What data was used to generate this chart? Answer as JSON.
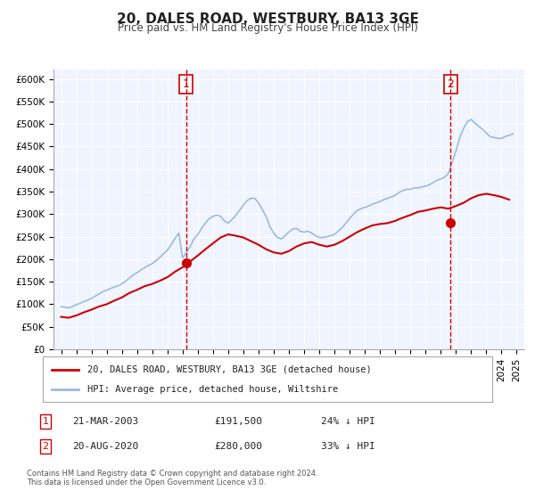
{
  "title": "20, DALES ROAD, WESTBURY, BA13 3GE",
  "subtitle": "Price paid vs. HM Land Registry's House Price Index (HPI)",
  "xlabel": "",
  "ylabel": "",
  "background_color": "#ffffff",
  "plot_bg_color": "#f0f4ff",
  "grid_color": "#ffffff",
  "ylim": [
    0,
    620000
  ],
  "xlim_start": 1995.0,
  "xlim_end": 2025.5,
  "yticks": [
    0,
    50000,
    100000,
    150000,
    200000,
    250000,
    300000,
    350000,
    400000,
    450000,
    500000,
    550000,
    600000
  ],
  "ytick_labels": [
    "£0",
    "£50K",
    "£100K",
    "£150K",
    "£200K",
    "£250K",
    "£300K",
    "£350K",
    "£400K",
    "£450K",
    "£500K",
    "£550K",
    "£600K"
  ],
  "xtick_years": [
    1995,
    1996,
    1997,
    1998,
    1999,
    2000,
    2001,
    2002,
    2003,
    2004,
    2005,
    2006,
    2007,
    2008,
    2009,
    2010,
    2011,
    2012,
    2013,
    2014,
    2015,
    2016,
    2017,
    2018,
    2019,
    2020,
    2021,
    2022,
    2023,
    2024,
    2025
  ],
  "red_line_label": "20, DALES ROAD, WESTBURY, BA13 3GE (detached house)",
  "blue_line_label": "HPI: Average price, detached house, Wiltshire",
  "sale1_date": "21-MAR-2003",
  "sale1_price": "£191,500",
  "sale1_hpi": "24% ↓ HPI",
  "sale1_x": 2003.22,
  "sale1_y": 191500,
  "sale2_date": "20-AUG-2020",
  "sale2_price": "£280,000",
  "sale2_hpi": "33% ↓ HPI",
  "sale2_x": 2020.64,
  "sale2_y": 280000,
  "footer": "Contains HM Land Registry data © Crown copyright and database right 2024.\nThis data is licensed under the Open Government Licence v3.0.",
  "red_color": "#cc0000",
  "blue_color": "#99bbdd",
  "dot_color": "#cc0000",
  "vline_color": "#cc0000",
  "marker_box_color": "#cc0000",
  "hpi_data_x": [
    1995.0,
    1995.25,
    1995.5,
    1995.75,
    1996.0,
    1996.25,
    1996.5,
    1996.75,
    1997.0,
    1997.25,
    1997.5,
    1997.75,
    1998.0,
    1998.25,
    1998.5,
    1998.75,
    1999.0,
    1999.25,
    1999.5,
    1999.75,
    2000.0,
    2000.25,
    2000.5,
    2000.75,
    2001.0,
    2001.25,
    2001.5,
    2001.75,
    2002.0,
    2002.25,
    2002.5,
    2002.75,
    2003.0,
    2003.25,
    2003.5,
    2003.75,
    2004.0,
    2004.25,
    2004.5,
    2004.75,
    2005.0,
    2005.25,
    2005.5,
    2005.75,
    2006.0,
    2006.25,
    2006.5,
    2006.75,
    2007.0,
    2007.25,
    2007.5,
    2007.75,
    2008.0,
    2008.25,
    2008.5,
    2008.75,
    2009.0,
    2009.25,
    2009.5,
    2009.75,
    2010.0,
    2010.25,
    2010.5,
    2010.75,
    2011.0,
    2011.25,
    2011.5,
    2011.75,
    2012.0,
    2012.25,
    2012.5,
    2012.75,
    2013.0,
    2013.25,
    2013.5,
    2013.75,
    2014.0,
    2014.25,
    2014.5,
    2014.75,
    2015.0,
    2015.25,
    2015.5,
    2015.75,
    2016.0,
    2016.25,
    2016.5,
    2016.75,
    2017.0,
    2017.25,
    2017.5,
    2017.75,
    2018.0,
    2018.25,
    2018.5,
    2018.75,
    2019.0,
    2019.25,
    2019.5,
    2019.75,
    2020.0,
    2020.25,
    2020.5,
    2020.75,
    2021.0,
    2021.25,
    2021.5,
    2021.75,
    2022.0,
    2022.25,
    2022.5,
    2022.75,
    2023.0,
    2023.25,
    2023.5,
    2023.75,
    2024.0,
    2024.25,
    2024.5,
    2024.75
  ],
  "hpi_data_y": [
    95000,
    93000,
    92000,
    95000,
    99000,
    102000,
    106000,
    109000,
    113000,
    118000,
    123000,
    128000,
    131000,
    135000,
    138000,
    141000,
    145000,
    151000,
    158000,
    165000,
    170000,
    176000,
    181000,
    186000,
    190000,
    197000,
    204000,
    212000,
    220000,
    232000,
    246000,
    258000,
    203000,
    215000,
    228000,
    245000,
    255000,
    268000,
    280000,
    290000,
    295000,
    298000,
    295000,
    285000,
    280000,
    288000,
    297000,
    308000,
    320000,
    330000,
    335000,
    335000,
    325000,
    310000,
    295000,
    272000,
    258000,
    248000,
    245000,
    252000,
    260000,
    267000,
    268000,
    262000,
    260000,
    262000,
    258000,
    252000,
    248000,
    248000,
    250000,
    252000,
    255000,
    262000,
    270000,
    280000,
    290000,
    300000,
    308000,
    312000,
    315000,
    318000,
    322000,
    325000,
    328000,
    332000,
    335000,
    338000,
    342000,
    348000,
    352000,
    355000,
    355000,
    358000,
    358000,
    360000,
    362000,
    365000,
    370000,
    375000,
    378000,
    382000,
    390000,
    415000,
    440000,
    470000,
    490000,
    505000,
    510000,
    502000,
    495000,
    488000,
    480000,
    472000,
    470000,
    468000,
    468000,
    472000,
    475000,
    478000
  ],
  "red_data_x": [
    1995.0,
    1995.5,
    1996.0,
    1996.5,
    1997.0,
    1997.5,
    1998.0,
    1998.5,
    1999.0,
    1999.5,
    2000.0,
    2000.5,
    2001.0,
    2001.5,
    2002.0,
    2002.5,
    2003.0,
    2003.5,
    2004.0,
    2004.5,
    2005.0,
    2005.5,
    2006.0,
    2006.5,
    2007.0,
    2007.5,
    2008.0,
    2008.5,
    2009.0,
    2009.5,
    2010.0,
    2010.5,
    2011.0,
    2011.5,
    2012.0,
    2012.5,
    2013.0,
    2013.5,
    2014.0,
    2014.5,
    2015.0,
    2015.5,
    2016.0,
    2016.5,
    2017.0,
    2017.5,
    2018.0,
    2018.5,
    2019.0,
    2019.5,
    2020.0,
    2020.5,
    2021.0,
    2021.5,
    2022.0,
    2022.5,
    2023.0,
    2023.5,
    2024.0,
    2024.5
  ],
  "red_data_y": [
    72000,
    70000,
    75000,
    82000,
    88000,
    95000,
    100000,
    108000,
    115000,
    125000,
    132000,
    140000,
    145000,
    152000,
    160000,
    172000,
    182000,
    195000,
    208000,
    222000,
    235000,
    248000,
    255000,
    252000,
    248000,
    240000,
    232000,
    222000,
    215000,
    212000,
    218000,
    228000,
    235000,
    238000,
    232000,
    228000,
    232000,
    240000,
    250000,
    260000,
    268000,
    275000,
    278000,
    280000,
    285000,
    292000,
    298000,
    305000,
    308000,
    312000,
    315000,
    312000,
    318000,
    325000,
    335000,
    342000,
    345000,
    342000,
    338000,
    332000
  ]
}
